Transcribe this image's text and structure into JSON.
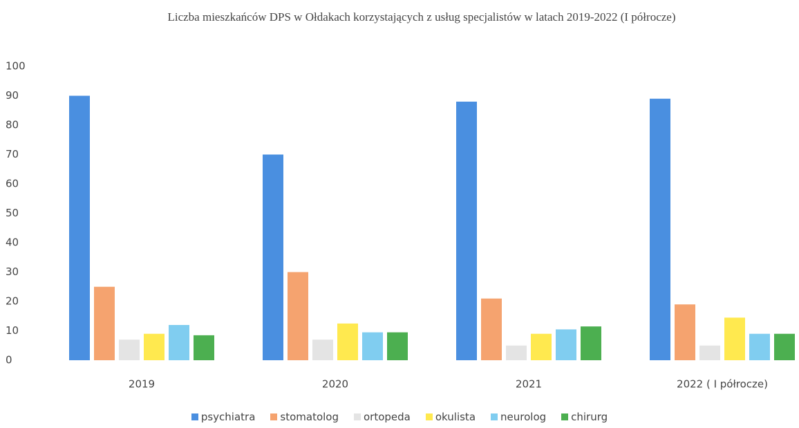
{
  "chart_data": {
    "type": "bar",
    "title": "Liczba mieszkańców DPS w Ołdakach korzystających z usług specjalistów w latach 2019-2022 (I półrocze)",
    "categories": [
      "2019",
      "2020",
      "2021",
      "2022 ( I półrocze)"
    ],
    "series": [
      {
        "name": "psychiatra",
        "color": "#4a8fe0",
        "values": [
          90,
          70,
          88,
          89
        ]
      },
      {
        "name": "stomatolog",
        "color": "#f5a36f",
        "values": [
          25,
          30,
          21,
          19
        ]
      },
      {
        "name": "ortopeda",
        "color": "#e4e4e4",
        "values": [
          7,
          7,
          5,
          5
        ]
      },
      {
        "name": "okulista",
        "color": "#ffe94f",
        "values": [
          9,
          12.5,
          9,
          14.5
        ]
      },
      {
        "name": "neurolog",
        "color": "#80cdf0",
        "values": [
          12,
          9.5,
          10.5,
          9
        ]
      },
      {
        "name": "chirurg",
        "color": "#4caf50",
        "values": [
          8.5,
          9.5,
          11.5,
          9
        ]
      }
    ],
    "ylim": [
      0,
      100
    ],
    "yticks": [
      0,
      10,
      20,
      30,
      40,
      50,
      60,
      70,
      80,
      90,
      100
    ],
    "grid": false,
    "legend": "bottom"
  }
}
